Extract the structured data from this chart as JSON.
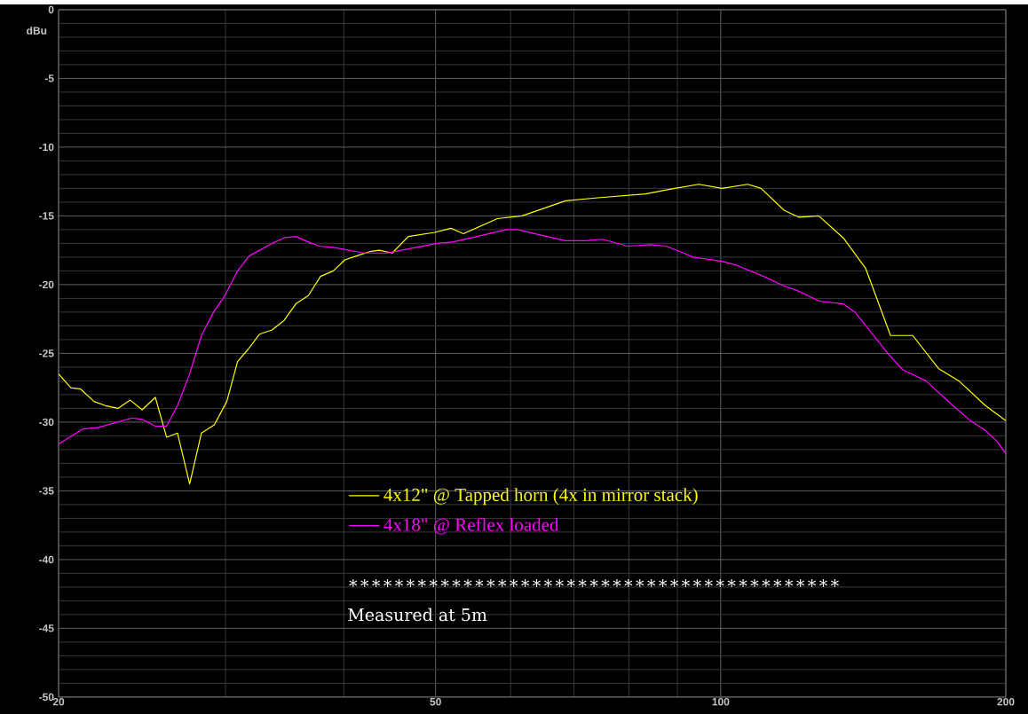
{
  "chart_data": {
    "type": "line",
    "ylabel": "dBu",
    "log": "x",
    "xlim": [
      20,
      200
    ],
    "ylim": [
      -50,
      0
    ],
    "xticks": [
      20,
      50,
      100,
      200
    ],
    "yticks": [
      0,
      -5,
      -10,
      -15,
      -20,
      -25,
      -30,
      -35,
      -40,
      -45,
      -50
    ],
    "grid": true,
    "legend": "bottom",
    "series": [
      {
        "name": "4x12\" @ Tapped horn (4x in mirror stack)",
        "color": "#ffff00",
        "x": [
          20,
          20.6,
          21.1,
          21.8,
          22.4,
          23.1,
          23.8,
          24.5,
          25.3,
          26.0,
          26.7,
          27.5,
          28.3,
          29.2,
          30.1,
          30.9,
          31.7,
          32.6,
          33.6,
          34.6,
          35.6,
          36.7,
          37.8,
          39.0,
          40.1,
          41.3,
          42.6,
          43.6,
          45.0,
          46.8,
          49.9,
          51.9,
          53.5,
          58.1,
          61.7,
          68.6,
          73.7,
          83.3,
          89.4,
          94.8,
          100.3,
          106.8,
          110.3,
          116.7,
          121.0,
          126.9,
          134.7,
          142.2,
          151.1,
          159.5,
          169.8,
          178.4,
          190.3,
          200
        ],
        "values": [
          -26.5,
          -27.5,
          -27.6,
          -28.5,
          -28.8,
          -29.0,
          -28.4,
          -29.1,
          -28.2,
          -31.1,
          -30.8,
          -34.5,
          -30.8,
          -30.2,
          -28.5,
          -25.6,
          -24.7,
          -23.6,
          -23.3,
          -22.6,
          -21.4,
          -20.8,
          -19.4,
          -19.0,
          -18.2,
          -17.9,
          -17.6,
          -17.5,
          -17.7,
          -16.5,
          -16.2,
          -15.9,
          -16.3,
          -15.2,
          -15.0,
          -13.9,
          -13.7,
          -13.4,
          -13.0,
          -12.7,
          -13.0,
          -12.7,
          -13.0,
          -14.6,
          -15.1,
          -15.0,
          -16.6,
          -18.8,
          -23.7,
          -23.7,
          -26.1,
          -27.0,
          -28.8,
          -29.9
        ]
      },
      {
        "name": "4x18\" @ Reflex loaded",
        "color": "#ff00ff",
        "x": [
          20,
          21.2,
          22.0,
          23.9,
          24.5,
          25.3,
          26.0,
          26.7,
          27.5,
          28.3,
          29.2,
          29.9,
          30.9,
          31.8,
          32.6,
          33.6,
          34.6,
          35.6,
          36.7,
          37.7,
          39.1,
          42.0,
          44.5,
          46.8,
          50.2,
          52.1,
          55.3,
          59.4,
          61.0,
          63.7,
          68.6,
          72.1,
          75.0,
          79.8,
          84.4,
          87.5,
          91.4,
          93.4,
          100.3,
          104.0,
          111.0,
          116.7,
          120.2,
          127.1,
          134.7,
          138.6,
          150.1,
          155.7,
          164.7,
          174.6,
          183.5,
          190.3,
          195.7,
          200
        ],
        "values": [
          -31.6,
          -30.5,
          -30.4,
          -29.7,
          -29.8,
          -30.3,
          -30.3,
          -28.8,
          -26.5,
          -23.7,
          -21.9,
          -20.9,
          -19.0,
          -17.9,
          -17.5,
          -17.0,
          -16.6,
          -16.5,
          -16.9,
          -17.2,
          -17.3,
          -17.7,
          -17.7,
          -17.4,
          -17.0,
          -16.9,
          -16.5,
          -16.0,
          -16.0,
          -16.3,
          -16.8,
          -16.8,
          -16.7,
          -17.2,
          -17.1,
          -17.2,
          -17.7,
          -18.0,
          -18.3,
          -18.6,
          -19.4,
          -20.1,
          -20.4,
          -21.2,
          -21.4,
          -22.0,
          -25.0,
          -26.2,
          -27.0,
          -28.6,
          -29.9,
          -30.6,
          -31.4,
          -32.3
        ]
      }
    ],
    "annotations": [
      "∗∗∗∗∗∗∗∗∗∗∗∗∗∗∗∗∗∗∗∗∗∗∗∗∗∗∗∗∗∗∗∗∗∗∗∗∗∗∗∗∗∗∗",
      "Measured at 5m"
    ]
  }
}
